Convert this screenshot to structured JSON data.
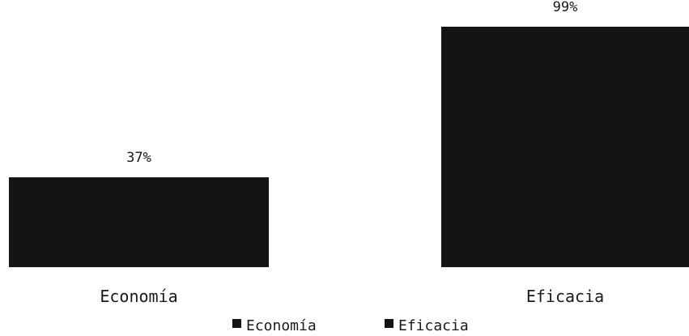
{
  "chart_data": {
    "type": "bar",
    "categories": [
      "Economía",
      "Eficacia"
    ],
    "series": [
      {
        "name": "Economía",
        "values": [
          37,
          null
        ]
      },
      {
        "name": "Eficacia",
        "values": [
          null,
          99
        ]
      }
    ],
    "data_labels": [
      "37%",
      "99%"
    ],
    "value_unit": "%",
    "ylim": [
      0,
      100
    ],
    "grid": false,
    "legend": {
      "position": "bottom",
      "entries": [
        "Economía",
        "Eficacia"
      ]
    },
    "colors": {
      "bar": "#141414",
      "text": "#1a1a1a"
    }
  }
}
